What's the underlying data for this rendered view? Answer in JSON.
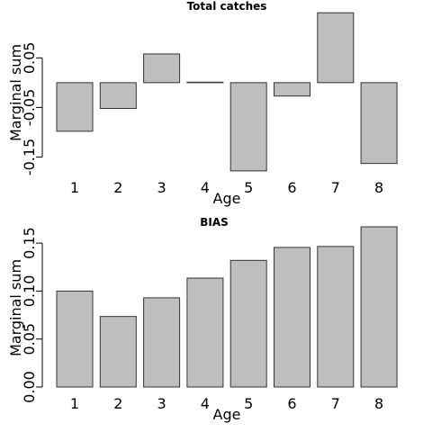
{
  "chart_data": [
    {
      "type": "bar",
      "title": "Total catches",
      "xlabel": "Age",
      "ylabel": "Marginal sum",
      "categories": [
        "1",
        "2",
        "3",
        "4",
        "5",
        "6",
        "7",
        "8"
      ],
      "values": [
        -0.098,
        -0.052,
        0.058,
        0.001,
        -0.178,
        -0.027,
        0.141,
        -0.163
      ],
      "ylim": [
        -0.18,
        0.145
      ],
      "yticks": [
        -0.15,
        -0.05,
        0.05
      ],
      "ytick_labels": [
        "-0.15",
        "-0.05",
        "0.05"
      ],
      "grid": false,
      "bar_color": "#bebebe"
    },
    {
      "type": "bar",
      "title": "BIAS",
      "xlabel": "Age",
      "ylabel": "Marginal sum",
      "categories": [
        "1",
        "2",
        "3",
        "4",
        "5",
        "6",
        "7",
        "8"
      ],
      "values": [
        0.1,
        0.0735,
        0.093,
        0.1135,
        0.132,
        0.1455,
        0.1465,
        0.167
      ],
      "ylim": [
        0,
        0.167
      ],
      "yticks": [
        0.0,
        0.05,
        0.1,
        0.15
      ],
      "ytick_labels": [
        "0.00",
        "0.05",
        "0.10",
        "0.15"
      ],
      "grid": false,
      "bar_color": "#bebebe"
    }
  ]
}
